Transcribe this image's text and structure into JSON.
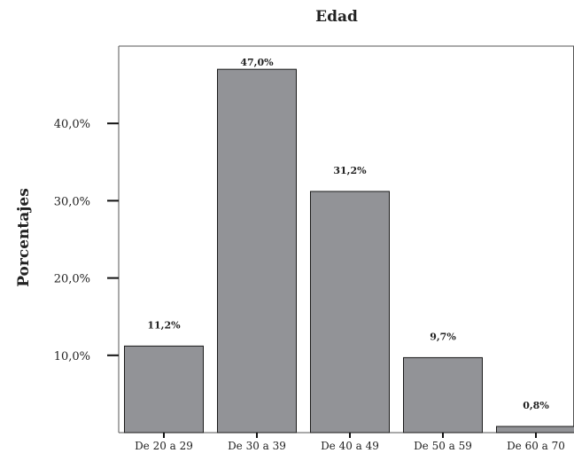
{
  "chart_data": {
    "type": "bar",
    "title": "Edad",
    "xlabel": "",
    "ylabel": "Porcentajes",
    "categories": [
      "De 20 a 29",
      "De 30 a 39",
      "De 40 a 49",
      "De 50 a 59",
      "De 60 a 70"
    ],
    "values": [
      11.2,
      47.0,
      31.2,
      9.7,
      0.8
    ],
    "data_labels": [
      "11,2%",
      "47,0%",
      "31,2%",
      "9,7%",
      "0,8%"
    ],
    "ylim": [
      0,
      50
    ],
    "yticks": [
      10,
      20,
      30,
      40
    ],
    "ytick_labels": [
      "10,0%",
      "20,0%",
      "30,0%",
      "40,0%"
    ],
    "grid": false,
    "legend": "none",
    "colors": {
      "bar": "#929397",
      "bar_edge": "#1a1a1a",
      "axis": "#555555",
      "text": "#222222"
    }
  }
}
